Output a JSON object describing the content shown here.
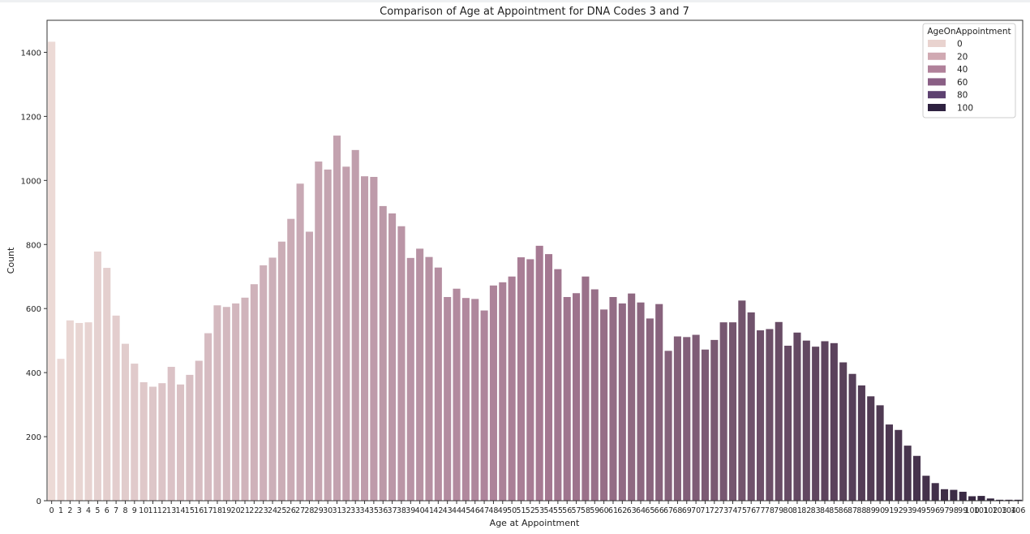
{
  "chart_data": {
    "type": "bar",
    "title": "Comparison of Age at Appointment for DNA Codes 3 and 7",
    "xlabel": "Age at Appointment",
    "ylabel": "Count",
    "ylim": [
      0,
      1500
    ],
    "yticks": [
      0,
      200,
      400,
      600,
      800,
      1000,
      1200,
      1400
    ],
    "grid": false,
    "legend": {
      "title": "AgeOnAppointment",
      "placement": "top-right",
      "entries": [
        {
          "label": "0",
          "color": "#e9d3cf"
        },
        {
          "label": "20",
          "color": "#d0a9b2"
        },
        {
          "label": "40",
          "color": "#b0819a"
        },
        {
          "label": "60",
          "color": "#8a5f85"
        },
        {
          "label": "80",
          "color": "#5d4170"
        },
        {
          "label": "100",
          "color": "#2e2140"
        }
      ]
    },
    "color_scale": {
      "low": "#ecdad6",
      "mid": "#a67a93",
      "high": "#2a1e38",
      "domain": [
        0,
        106
      ]
    },
    "categories": [
      "0",
      "1",
      "2",
      "3",
      "4",
      "5",
      "6",
      "7",
      "8",
      "9",
      "10",
      "11",
      "12",
      "13",
      "14",
      "15",
      "16",
      "17",
      "18",
      "19",
      "20",
      "21",
      "22",
      "23",
      "24",
      "25",
      "26",
      "27",
      "28",
      "29",
      "30",
      "31",
      "32",
      "33",
      "34",
      "35",
      "36",
      "37",
      "38",
      "39",
      "40",
      "41",
      "42",
      "43",
      "44",
      "45",
      "46",
      "47",
      "48",
      "49",
      "50",
      "51",
      "52",
      "53",
      "54",
      "55",
      "56",
      "57",
      "58",
      "59",
      "60",
      "61",
      "62",
      "63",
      "64",
      "65",
      "66",
      "67",
      "68",
      "69",
      "70",
      "71",
      "72",
      "73",
      "74",
      "75",
      "76",
      "77",
      "78",
      "79",
      "80",
      "81",
      "82",
      "83",
      "84",
      "85",
      "86",
      "87",
      "88",
      "89",
      "90",
      "91",
      "92",
      "93",
      "94",
      "95",
      "96",
      "97",
      "98",
      "99",
      "100",
      "101",
      "102",
      "103",
      "104",
      "106"
    ],
    "values": [
      1433,
      443,
      563,
      555,
      557,
      778,
      727,
      578,
      490,
      428,
      370,
      356,
      367,
      418,
      363,
      393,
      437,
      523,
      610,
      605,
      616,
      634,
      676,
      735,
      759,
      809,
      880,
      990,
      840,
      1059,
      1034,
      1140,
      1043,
      1095,
      1013,
      1011,
      920,
      897,
      857,
      758,
      787,
      761,
      728,
      636,
      662,
      633,
      630,
      594,
      672,
      682,
      700,
      760,
      754,
      796,
      770,
      723,
      636,
      648,
      700,
      660,
      597,
      636,
      616,
      647,
      619,
      569,
      614,
      468,
      513,
      511,
      518,
      472,
      502,
      557,
      557,
      625,
      588,
      532,
      536,
      558,
      484,
      525,
      500,
      481,
      498,
      492,
      432,
      396,
      360,
      326,
      298,
      238,
      221,
      172,
      140,
      78,
      55,
      36,
      34,
      28,
      14,
      15,
      7,
      3,
      3,
      3
    ]
  }
}
